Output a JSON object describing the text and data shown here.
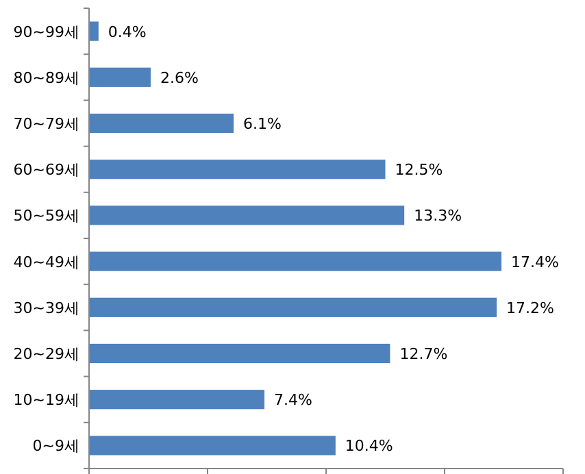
{
  "chart_data": {
    "type": "bar",
    "orientation": "horizontal",
    "categories": [
      "90~99세",
      "80~89세",
      "70~79세",
      "60~69세",
      "50~59세",
      "40~49세",
      "30~39세",
      "20~29세",
      "10~19세",
      "0~9세"
    ],
    "values": [
      0.4,
      2.6,
      6.1,
      12.5,
      13.3,
      17.4,
      17.2,
      12.7,
      7.4,
      10.4
    ],
    "value_labels": [
      "0.4%",
      "2.6%",
      "6.1%",
      "12.5%",
      "13.3%",
      "17.4%",
      "17.2%",
      "12.7%",
      "7.4%",
      "10.4%"
    ],
    "color": "#4f81bd",
    "xlim": [
      0,
      20
    ],
    "xticks": [
      {
        "value": 0,
        "label": null
      },
      {
        "value": 5,
        "label": null
      },
      {
        "value": 10,
        "label": null
      },
      {
        "value": 15,
        "label": null
      },
      {
        "value": 20,
        "label": null
      }
    ],
    "tick_labels": "y"
  }
}
